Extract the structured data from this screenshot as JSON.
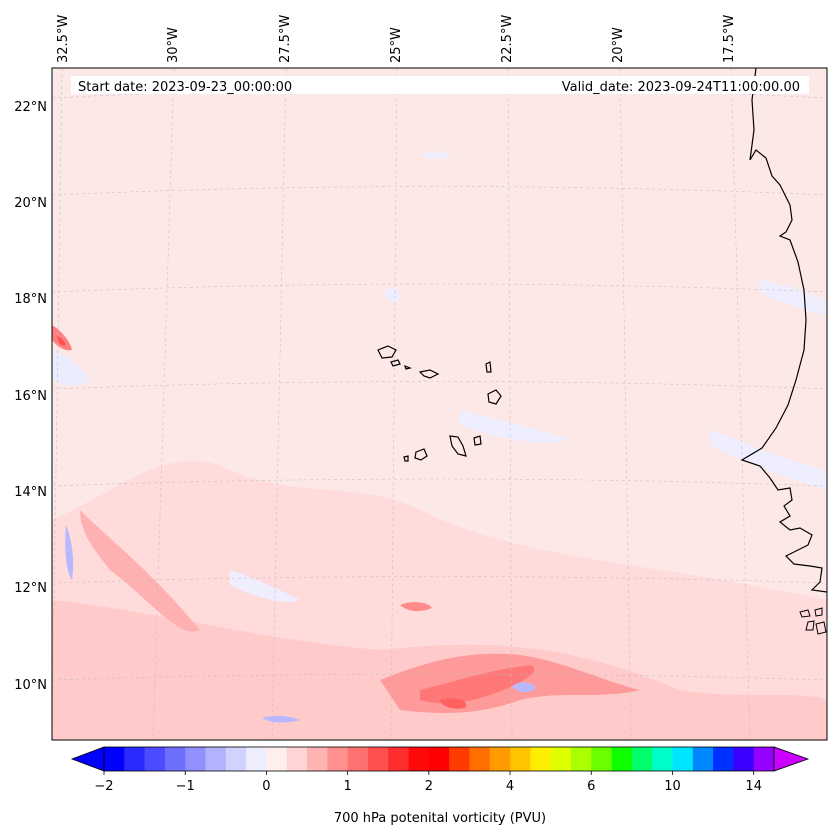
{
  "map": {
    "start_date": "Start date: 2023-09-23_00:00:00",
    "valid_date": "Valid_date: 2023-09-24T11:00:00.00",
    "lon_labels": [
      "32.5°W",
      "30°W",
      "27.5°W",
      "25°W",
      "22.5°W",
      "20°W",
      "17.5°W"
    ],
    "lat_labels": [
      "22°N",
      "20°N",
      "18°N",
      "16°N",
      "14°N",
      "12°N",
      "10°N"
    ],
    "background_color": "#fde8e8",
    "coastline_color": "#000000"
  },
  "colorbar": {
    "label": "700 hPa potenital vorticity (PVU)",
    "tick_labels": [
      "−2",
      "−1",
      "0",
      "1",
      "2",
      "4",
      "6",
      "10",
      "14"
    ],
    "colors": [
      "#0000ff",
      "#2a2aff",
      "#4b4bff",
      "#6f6fff",
      "#9090ff",
      "#b2b2ff",
      "#d2d2ff",
      "#eeeeff",
      "#ffeeee",
      "#ffd4d4",
      "#ffb4b4",
      "#ff9090",
      "#ff7070",
      "#ff5050",
      "#ff2e2e",
      "#ff0a0a",
      "#ff0000",
      "#ff3b00",
      "#ff6f00",
      "#ff9a00",
      "#ffc400",
      "#ffee00",
      "#dfff00",
      "#aaff00",
      "#6aff00",
      "#10ff00",
      "#00ff6a",
      "#00ffc8",
      "#00e5ff",
      "#0088ff",
      "#0030ff",
      "#3a00ff",
      "#9500ff"
    ],
    "left_arrow_color": "#0000ff",
    "right_arrow_color": "#cc00ff"
  }
}
